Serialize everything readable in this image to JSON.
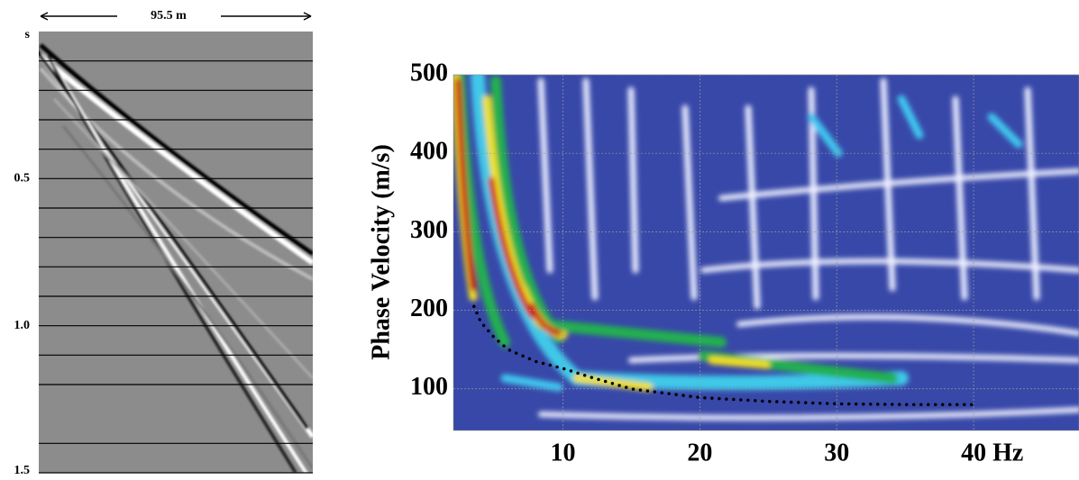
{
  "chart_data": [
    {
      "type": "seismogram",
      "annotation": "95.5 m",
      "ylim": [
        0,
        1.5
      ],
      "yticks": [
        {
          "value": 0,
          "label": "s"
        },
        0.5,
        {
          "value": 1,
          "label": "1.0"
        },
        1.5
      ],
      "gridlines": [
        0.1,
        0.2,
        0.3,
        0.4,
        0.5,
        0.6,
        0.7,
        0.8,
        0.9,
        1.0,
        1.1,
        1.2,
        1.4,
        1.5
      ],
      "grid": true
    },
    {
      "type": "dispersion",
      "ylabel": "Phase Velocity (m/s)",
      "xlim": [
        2,
        47.7
      ],
      "ylim": [
        47,
        500
      ],
      "xticks": [
        10,
        20,
        30,
        {
          "value": 40,
          "label": "40 Hz"
        }
      ],
      "yticks": [
        100,
        200,
        300,
        400,
        500
      ],
      "grid": true,
      "color": "#000000",
      "x": [
        3.5,
        4,
        5,
        6,
        8,
        10,
        12,
        15,
        20,
        25,
        30,
        35,
        40
      ],
      "values": [
        205,
        185,
        165,
        150,
        135,
        126,
        115,
        100,
        89,
        84,
        81,
        80,
        80
      ]
    }
  ]
}
